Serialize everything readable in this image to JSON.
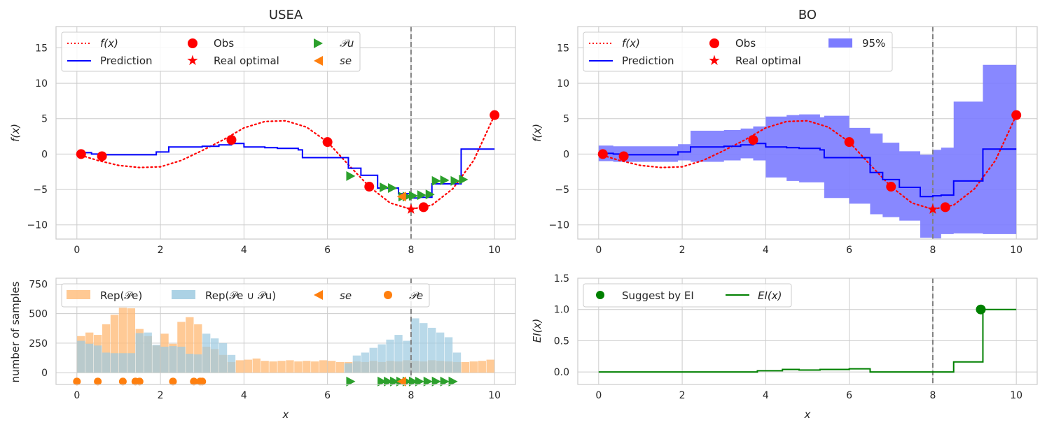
{
  "chart_data": [
    {
      "id": "usea_top",
      "type": "line",
      "title": "USEA",
      "xlabel": "",
      "ylabel": "f(x)",
      "xlim": [
        -0.5,
        10.5
      ],
      "ylim": [
        -12,
        18
      ],
      "xticks": [
        0,
        2,
        4,
        6,
        8,
        10
      ],
      "yticks": [
        -10,
        -5,
        0,
        5,
        10,
        15
      ],
      "xtick_labels": [
        "0",
        "2",
        "4",
        "6",
        "8",
        "10"
      ],
      "ytick_labels": [
        "−10",
        "−5",
        "0",
        "5",
        "10",
        "15"
      ],
      "grid": true,
      "vline_x": 8,
      "legend": {
        "placement": "top-left",
        "ncol": 3,
        "entries": [
          "f(x)",
          "Obs",
          "𝒫u",
          "Prediction",
          "Real optimal",
          "se"
        ]
      },
      "series": [
        {
          "name": "f(x)",
          "style": "dotted",
          "color": "#ff0000",
          "x": [
            0,
            0.5,
            1,
            1.5,
            2,
            2.5,
            3,
            3.5,
            4,
            4.5,
            5,
            5.5,
            6,
            6.5,
            7,
            7.5,
            8,
            8.5,
            9,
            9.5,
            10
          ],
          "y": [
            0,
            -0.9,
            -1.6,
            -1.9,
            -1.8,
            -0.9,
            0.5,
            2.0,
            3.7,
            4.6,
            4.7,
            3.8,
            1.7,
            -1.5,
            -4.6,
            -6.9,
            -7.8,
            -7.2,
            -4.9,
            -0.9,
            5.5
          ]
        },
        {
          "name": "Prediction",
          "style": "step",
          "color": "#0000ff",
          "x": [
            0.1,
            0.35,
            0.6,
            1.9,
            2.2,
            3.0,
            3.4,
            3.7,
            4.0,
            4.5,
            4.8,
            5.3,
            5.4,
            6.0,
            6.5,
            6.8,
            7.2,
            7.7,
            8.0,
            8.2,
            8.5,
            9.2,
            10.0
          ],
          "y": [
            0.2,
            0.0,
            -0.1,
            0.3,
            1.0,
            1.1,
            1.3,
            1.5,
            1.0,
            0.9,
            0.8,
            0.6,
            -0.5,
            -0.5,
            -2.0,
            -3.0,
            -4.8,
            -5.6,
            -6.2,
            -6.1,
            -4.2,
            0.7,
            0.7
          ]
        },
        {
          "name": "Obs",
          "style": "marker-circle",
          "color": "#ff0000",
          "x": [
            0.1,
            0.6,
            3.7,
            6.0,
            7.0,
            8.3,
            10.0
          ],
          "y": [
            0.0,
            -0.3,
            2.0,
            1.7,
            -4.6,
            -7.5,
            5.5
          ]
        },
        {
          "name": "Real optimal",
          "style": "marker-star",
          "color": "#ff0000",
          "x": [
            8.0
          ],
          "y": [
            -7.8
          ]
        },
        {
          "name": "𝒫u",
          "style": "marker-triangle-right",
          "color": "#2ca02c",
          "x": [
            6.55,
            7.35,
            7.55,
            7.8,
            7.9,
            8.05,
            8.25,
            8.45,
            8.6,
            8.8,
            9.05,
            9.25
          ],
          "y": [
            -3.1,
            -4.7,
            -4.8,
            -6.0,
            -6.0,
            -5.9,
            -5.8,
            -5.7,
            -3.8,
            -3.7,
            -3.8,
            -3.6
          ]
        },
        {
          "name": "se",
          "style": "marker-triangle-left",
          "color": "#ff7f0e",
          "x": [
            7.78
          ],
          "y": [
            -6.0
          ]
        }
      ]
    },
    {
      "id": "usea_bottom",
      "type": "bar",
      "title": "",
      "xlabel": "x",
      "ylabel": "number of samples",
      "xlim": [
        -0.5,
        10.5
      ],
      "ylim": [
        -100,
        800
      ],
      "xticks": [
        0,
        2,
        4,
        6,
        8,
        10
      ],
      "yticks": [
        0,
        250,
        500,
        750
      ],
      "xtick_labels": [
        "0",
        "2",
        "4",
        "6",
        "8",
        "10"
      ],
      "ytick_labels": [
        "0",
        "250",
        "500",
        "750"
      ],
      "grid": true,
      "vline_x": 8,
      "bin_width": 0.2,
      "legend": {
        "placement": "top-left",
        "ncol": 4,
        "entries": [
          "Rep(𝒫e)",
          "Rep(𝒫e ∪ 𝒫u)",
          "se",
          "𝒫e"
        ]
      },
      "series": [
        {
          "name": "Rep(𝒫e)",
          "color": "#ffbb78",
          "bin_starts": [
            0,
            0.2,
            0.4,
            0.6,
            0.8,
            1.0,
            1.2,
            1.4,
            1.6,
            1.8,
            2.0,
            2.2,
            2.4,
            2.6,
            2.8,
            3.0,
            3.2,
            3.4,
            3.6,
            3.8,
            4.0,
            4.2,
            4.4,
            4.6,
            4.8,
            5.0,
            5.2,
            5.4,
            5.6,
            5.8,
            6.0,
            6.2,
            6.4,
            6.6,
            6.8,
            7.0,
            7.2,
            7.4,
            7.6,
            7.8,
            8.0,
            8.2,
            8.4,
            8.6,
            8.8,
            9.0,
            9.2,
            9.4,
            9.6,
            9.8
          ],
          "values": [
            310,
            340,
            320,
            410,
            490,
            550,
            545,
            370,
            310,
            230,
            330,
            245,
            430,
            470,
            410,
            220,
            200,
            150,
            90,
            105,
            110,
            120,
            100,
            95,
            100,
            105,
            95,
            100,
            95,
            105,
            100,
            90,
            90,
            95,
            90,
            100,
            90,
            100,
            95,
            105,
            100,
            95,
            105,
            100,
            95,
            90,
            90,
            95,
            100,
            110
          ]
        },
        {
          "name": "Rep(𝒫e ∪ 𝒫u)",
          "color": "#9ecae1",
          "bin_starts": [
            0,
            0.2,
            0.4,
            0.6,
            0.8,
            1.0,
            1.2,
            1.4,
            1.6,
            1.8,
            2.0,
            2.2,
            2.4,
            2.6,
            2.8,
            3.0,
            3.2,
            3.4,
            3.6,
            3.8,
            4.0,
            4.2,
            4.4,
            4.6,
            4.8,
            5.0,
            5.2,
            5.4,
            5.6,
            5.8,
            6.0,
            6.2,
            6.4,
            6.6,
            6.8,
            7.0,
            7.2,
            7.4,
            7.6,
            7.8,
            8.0,
            8.2,
            8.4,
            8.6,
            8.8,
            9.0,
            9.2,
            9.4,
            9.6,
            9.8
          ],
          "values": [
            270,
            245,
            230,
            170,
            165,
            165,
            165,
            335,
            340,
            235,
            220,
            225,
            220,
            160,
            155,
            330,
            290,
            250,
            150,
            0,
            0,
            0,
            0,
            0,
            0,
            0,
            0,
            0,
            0,
            0,
            0,
            0,
            80,
            145,
            170,
            210,
            240,
            280,
            320,
            270,
            460,
            420,
            380,
            340,
            300,
            170,
            0,
            0,
            0,
            0
          ]
        },
        {
          "name": "𝒫e",
          "style": "marker-circle",
          "color": "#ff7f0e",
          "x": [
            0.0,
            0.5,
            1.1,
            1.4,
            1.5,
            2.3,
            2.8,
            2.95,
            3.0
          ],
          "y": [
            -75,
            -75,
            -75,
            -75,
            -75,
            -75,
            -75,
            -75,
            -75
          ]
        },
        {
          "name": "𝒫u",
          "style": "marker-triangle-right",
          "color": "#2ca02c",
          "x": [
            6.55,
            7.3,
            7.45,
            7.6,
            7.75,
            7.9,
            8.05,
            8.2,
            8.4,
            8.6,
            8.8,
            9.0
          ],
          "y": [
            -75,
            -75,
            -75,
            -75,
            -75,
            -75,
            -75,
            -75,
            -75,
            -75,
            -75,
            -75
          ]
        },
        {
          "name": "se",
          "style": "marker-triangle-left",
          "color": "#ff7f0e",
          "x": [
            7.78
          ],
          "y": [
            -75
          ]
        }
      ]
    },
    {
      "id": "bo_top",
      "type": "line",
      "title": "BO",
      "xlabel": "",
      "ylabel": "f(x)",
      "xlim": [
        -0.5,
        10.5
      ],
      "ylim": [
        -12,
        18
      ],
      "xticks": [
        0,
        2,
        4,
        6,
        8,
        10
      ],
      "yticks": [
        -10,
        -5,
        0,
        5,
        10,
        15
      ],
      "xtick_labels": [
        "0",
        "2",
        "4",
        "6",
        "8",
        "10"
      ],
      "ytick_labels": [
        "−10",
        "−5",
        "0",
        "5",
        "10",
        "15"
      ],
      "grid": true,
      "vline_x": 8,
      "legend": {
        "placement": "top-left",
        "ncol": 3,
        "entries": [
          "f(x)",
          "Obs",
          "95%",
          "Prediction",
          "Real optimal"
        ]
      },
      "band": {
        "name": "95%",
        "color": "#7b7bff",
        "x": [
          0.0,
          0.35,
          0.6,
          1.9,
          2.2,
          3.0,
          3.4,
          3.7,
          4.0,
          4.5,
          4.8,
          5.3,
          5.4,
          6.0,
          6.5,
          6.8,
          7.2,
          7.7,
          8.0,
          8.2,
          8.5,
          9.2,
          10.0
        ],
        "upper": [
          1.2,
          1.1,
          1.1,
          1.4,
          3.3,
          3.4,
          3.6,
          3.9,
          5.3,
          5.5,
          5.6,
          5.2,
          5.4,
          3.7,
          2.9,
          1.6,
          0.4,
          -0.1,
          0.6,
          0.9,
          7.4,
          12.6,
          12.6
        ],
        "lower": [
          -1.0,
          -1.1,
          -1.1,
          -0.9,
          -1.1,
          -0.9,
          -0.6,
          -0.9,
          -3.3,
          -3.8,
          -4.0,
          -4.0,
          -6.2,
          -7.0,
          -8.5,
          -8.9,
          -9.4,
          -11.8,
          -11.9,
          -11.3,
          -11.2,
          -11.3,
          -11.3
        ]
      },
      "series": [
        {
          "name": "f(x)",
          "style": "dotted",
          "color": "#ff0000",
          "x": [
            0,
            0.5,
            1,
            1.5,
            2,
            2.5,
            3,
            3.5,
            4,
            4.5,
            5,
            5.5,
            6,
            6.5,
            7,
            7.5,
            8,
            8.5,
            9,
            9.5,
            10
          ],
          "y": [
            0,
            -0.9,
            -1.6,
            -1.9,
            -1.8,
            -0.9,
            0.5,
            2.0,
            3.7,
            4.6,
            4.7,
            3.8,
            1.7,
            -1.5,
            -4.6,
            -6.9,
            -7.8,
            -7.2,
            -4.9,
            -0.9,
            5.5
          ]
        },
        {
          "name": "Prediction",
          "style": "step",
          "color": "#0000ff",
          "x": [
            0.0,
            0.35,
            0.6,
            1.9,
            2.2,
            3.0,
            3.4,
            3.7,
            4.0,
            4.5,
            4.8,
            5.3,
            5.4,
            6.0,
            6.5,
            6.8,
            7.2,
            7.7,
            8.0,
            8.2,
            8.5,
            9.2,
            10.0
          ],
          "y": [
            0.1,
            0.0,
            -0.1,
            0.3,
            1.0,
            1.1,
            1.3,
            1.5,
            1.0,
            0.9,
            0.8,
            0.6,
            -0.5,
            -0.5,
            -2.6,
            -3.6,
            -4.7,
            -6.0,
            -5.9,
            -5.8,
            -3.8,
            0.7,
            0.7
          ]
        },
        {
          "name": "Obs",
          "style": "marker-circle",
          "color": "#ff0000",
          "x": [
            0.1,
            0.6,
            3.7,
            6.0,
            7.0,
            8.3,
            10.0
          ],
          "y": [
            0.0,
            -0.3,
            2.0,
            1.7,
            -4.6,
            -7.5,
            5.5
          ]
        },
        {
          "name": "Real optimal",
          "style": "marker-star",
          "color": "#ff0000",
          "x": [
            8.0
          ],
          "y": [
            -7.8
          ]
        }
      ]
    },
    {
      "id": "bo_bottom",
      "type": "line",
      "title": "",
      "xlabel": "x",
      "ylabel": "EI(x)",
      "xlim": [
        -0.5,
        10.5
      ],
      "ylim": [
        -0.2,
        1.5
      ],
      "xticks": [
        0,
        2,
        4,
        6,
        8,
        10
      ],
      "yticks": [
        0.0,
        0.5,
        1.0,
        1.5
      ],
      "xtick_labels": [
        "0",
        "2",
        "4",
        "6",
        "8",
        "10"
      ],
      "ytick_labels": [
        "0.0",
        "0.5",
        "1.0",
        "1.5"
      ],
      "grid": true,
      "vline_x": 8,
      "legend": {
        "placement": "top-left",
        "ncol": 2,
        "entries": [
          "Suggest by EI",
          "EI(x)"
        ]
      },
      "series": [
        {
          "name": "EI(x)",
          "style": "step",
          "color": "#008000",
          "x": [
            0.0,
            3.8,
            4.4,
            4.8,
            5.3,
            6.0,
            6.5,
            8.2,
            8.5,
            9.2,
            10.0
          ],
          "y": [
            0.0,
            0.02,
            0.04,
            0.03,
            0.04,
            0.05,
            0.0,
            0.0,
            0.16,
            1.0,
            1.0
          ]
        },
        {
          "name": "Suggest by EI",
          "style": "marker-circle",
          "color": "#008000",
          "x": [
            9.15
          ],
          "y": [
            1.0
          ]
        }
      ]
    }
  ],
  "text": {
    "usea_title": "USEA",
    "bo_title": "BO",
    "ylabel_f": "f(x)",
    "ylabel_count": "number of samples",
    "ylabel_ei": "EI(x)",
    "xlabel": "x",
    "leg_fx": "f(x)",
    "leg_obs": "Obs",
    "leg_pu": "𝒫u",
    "leg_pred": "Prediction",
    "leg_real": "Real optimal",
    "leg_se": "se",
    "leg_95": "95%",
    "leg_rep_pe": "Rep(𝒫e)",
    "leg_rep_union": "Rep(𝒫e ∪ 𝒫u)",
    "leg_pe": "𝒫e",
    "leg_suggest": "Suggest by EI",
    "leg_ei": "EI(x)"
  },
  "colors": {
    "red": "#ff0000",
    "blue": "#0000ff",
    "green_marker": "#2ca02c",
    "orange": "#ff7f0e",
    "band": "#7b7bff",
    "hist_pe": "#ffbb78",
    "hist_union": "#9ecae1",
    "ei_green": "#008000"
  }
}
